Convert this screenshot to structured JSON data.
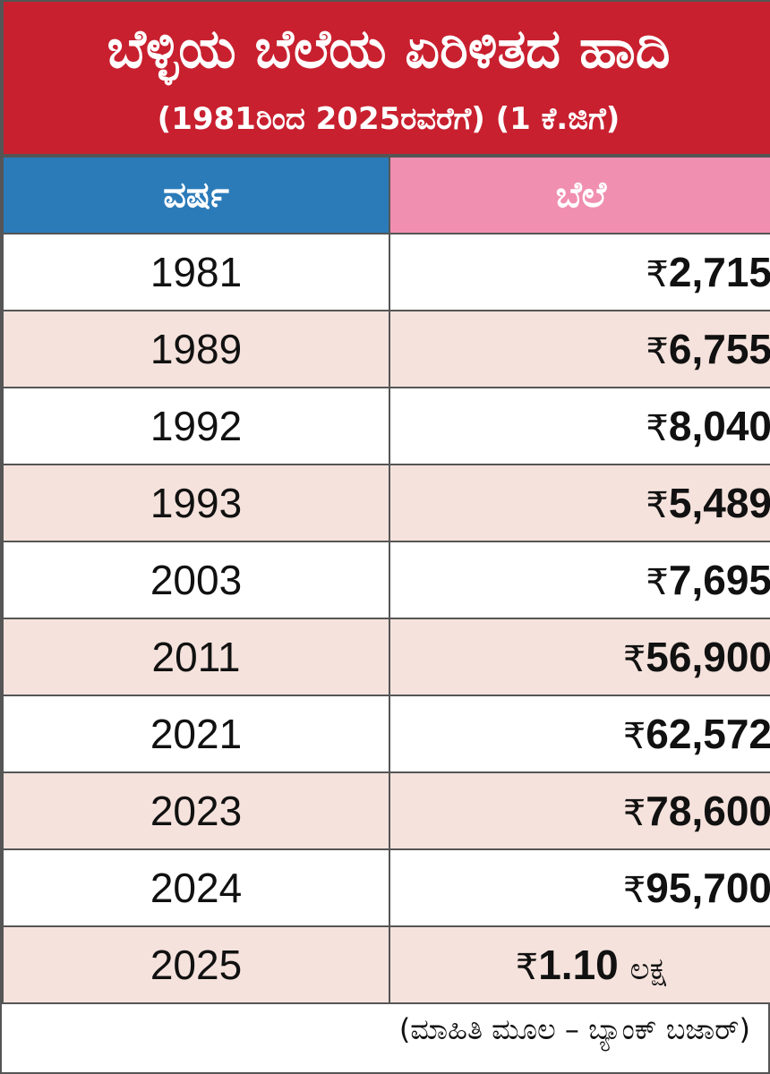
{
  "header": {
    "title": "ಬೆಳ್ಳಿಯ ಬೆಲೆಯ ಏರಿಳಿತದ ಹಾದಿ",
    "subtitle": "(1981ರಿಂದ 2025ರವರೆಗೆ) (1 ಕೆ.ಜಿಗೆ)"
  },
  "colors": {
    "header_bg": "#c8202f",
    "year_header_bg": "#2b7bb9",
    "price_header_bg": "#f08fb0",
    "stripe_bg": "#f5e2dc"
  },
  "chart_data": {
    "type": "table",
    "columns": [
      "ವರ್ಷ",
      "ಬೆಲೆ"
    ],
    "rows": [
      {
        "year": "1981",
        "currency": "₹",
        "price": "2,715",
        "unit": ""
      },
      {
        "year": "1989",
        "currency": "₹",
        "price": "6,755",
        "unit": ""
      },
      {
        "year": "1992",
        "currency": "₹",
        "price": "8,040",
        "unit": ""
      },
      {
        "year": "1993",
        "currency": "₹",
        "price": "5,489",
        "unit": ""
      },
      {
        "year": "2003",
        "currency": "₹",
        "price": "7,695",
        "unit": ""
      },
      {
        "year": "2011",
        "currency": "₹",
        "price": "56,900",
        "unit": ""
      },
      {
        "year": "2021",
        "currency": "₹",
        "price": "62,572",
        "unit": ""
      },
      {
        "year": "2023",
        "currency": "₹",
        "price": "78,600",
        "unit": ""
      },
      {
        "year": "2024",
        "currency": "₹",
        "price": "95,700",
        "unit": ""
      },
      {
        "year": "2025",
        "currency": "₹",
        "price": "1.10",
        "unit": "ಲಕ್ಷ"
      }
    ]
  },
  "footer": {
    "source": "(ಮಾಹಿತಿ ಮೂಲ – ಬ್ಯಾಂಕ್ ಬಜಾರ್)"
  }
}
